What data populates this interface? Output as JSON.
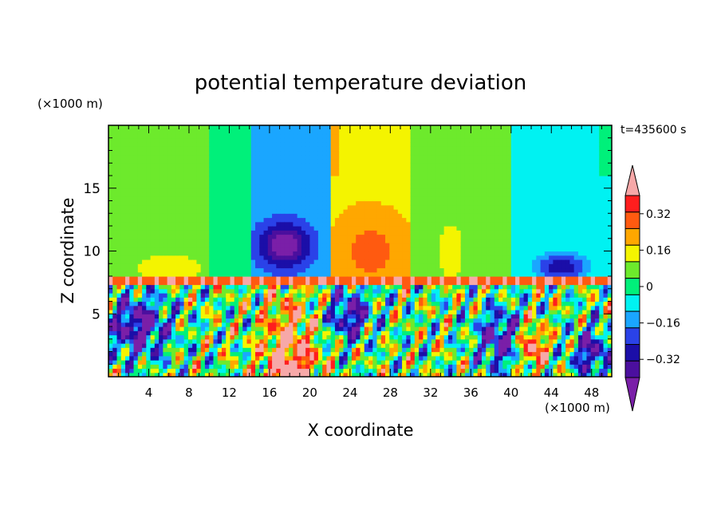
{
  "chart_data": {
    "type": "heatmap",
    "title": "potential temperature deviation",
    "time_label": "t=435600 s",
    "xlabel": "X coordinate",
    "ylabel": "Z coordinate",
    "x_unit": "(×1000 m)",
    "y_unit": "(×1000 m)",
    "xlim": [
      0,
      50
    ],
    "ylim": [
      0,
      20
    ],
    "x_ticks": [
      4,
      8,
      12,
      16,
      20,
      24,
      28,
      32,
      36,
      40,
      44,
      48
    ],
    "y_ticks": [
      5,
      10,
      15
    ],
    "colorbar": {
      "levels": [
        -0.48,
        -0.4,
        -0.32,
        -0.24,
        -0.16,
        -0.08,
        0,
        0.08,
        0.16,
        0.24,
        0.32,
        0.4
      ],
      "tick_labels": [
        "0.32",
        "0.16",
        "0",
        "−0.16",
        "−0.32"
      ],
      "tick_values": [
        0.32,
        0.16,
        0,
        -0.16,
        -0.32
      ],
      "colors": [
        "#7a1fa8",
        "#4b0f9e",
        "#1b0ea8",
        "#2a42e8",
        "#1aa6ff",
        "#00f2f2",
        "#00f07a",
        "#6dea2c",
        "#f4f400",
        "#ffa700",
        "#ff5a10",
        "#ff1e1e",
        "#f7a8a8"
      ]
    },
    "field": {
      "description": "2D field: upper layer (z>8) smooth large-scale pattern, lower layer (z<8) turbulent small-scale structure",
      "upper_layer": [
        {
          "x0": 0,
          "x1": 10,
          "value": 0.05
        },
        {
          "x0": 10,
          "x1": 14,
          "value": -0.02
        },
        {
          "x0": 14,
          "x1": 22,
          "value": -0.2
        },
        {
          "x0": 22,
          "x1": 30,
          "value": 0.15
        },
        {
          "x0": 30,
          "x1": 40,
          "value": 0.02
        },
        {
          "x0": 40,
          "x1": 50,
          "value": -0.1
        }
      ]
    }
  }
}
